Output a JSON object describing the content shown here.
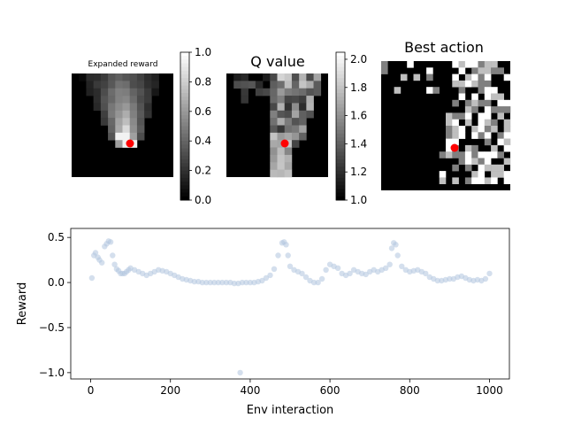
{
  "chart_data": [
    {
      "type": "heatmap",
      "title": "Expanded reward",
      "colormap": "gray",
      "colorbar": {
        "min": 0.0,
        "max": 1.0,
        "ticks": [
          "0.0",
          "0.2",
          "0.4",
          "0.6",
          "0.8",
          "1.0"
        ]
      },
      "marker": {
        "color": "#ff0000"
      }
    },
    {
      "type": "heatmap",
      "title": "Q value",
      "colormap": "gray",
      "colorbar": {
        "min": 1.0,
        "max": 2.05,
        "ticks": [
          "1.0",
          "1.2",
          "1.4",
          "1.6",
          "1.8",
          "2.0"
        ]
      },
      "marker": {
        "color": "#ff0000"
      }
    },
    {
      "type": "heatmap",
      "title": "Best action",
      "colormap": "gray",
      "marker": {
        "color": "#ff0000"
      }
    },
    {
      "type": "scatter",
      "xlabel": "Env interaction",
      "ylabel": "Reward",
      "xlim": [
        -50,
        1050
      ],
      "ylim": [
        -1.07,
        0.6
      ],
      "xticks": [
        "0",
        "200",
        "400",
        "600",
        "800",
        "1000"
      ],
      "yticks": [
        "−1.0",
        "−0.5",
        "0.0",
        "0.5"
      ],
      "point_color": "#b0c4de",
      "series": [
        {
          "x": [
            3,
            8,
            12,
            18,
            22,
            28,
            35,
            40,
            45,
            50,
            55,
            60,
            65,
            70,
            75,
            80,
            85,
            90,
            95,
            100,
            110,
            120,
            130,
            140,
            150,
            160,
            170,
            180,
            190,
            200,
            210,
            220,
            230,
            240,
            250,
            260,
            270,
            280,
            290,
            300,
            310,
            320,
            330,
            340,
            350,
            360,
            370,
            380,
            390,
            400,
            410,
            420,
            430,
            440,
            450,
            460,
            470,
            480,
            485,
            490,
            495,
            500,
            510,
            520,
            530,
            540,
            550,
            560,
            570,
            580,
            590,
            600,
            610,
            620,
            630,
            640,
            650,
            660,
            670,
            680,
            690,
            700,
            710,
            720,
            730,
            740,
            750,
            755,
            760,
            765,
            770,
            780,
            790,
            800,
            810,
            820,
            830,
            840,
            850,
            860,
            870,
            880,
            890,
            900,
            910,
            920,
            930,
            940,
            950,
            960,
            970,
            980,
            990,
            1000,
            375
          ],
          "y": [
            0.05,
            0.3,
            0.33,
            0.28,
            0.25,
            0.22,
            0.4,
            0.43,
            0.46,
            0.45,
            0.3,
            0.2,
            0.15,
            0.13,
            0.1,
            0.1,
            0.1,
            0.12,
            0.14,
            0.16,
            0.14,
            0.12,
            0.1,
            0.08,
            0.1,
            0.12,
            0.14,
            0.13,
            0.12,
            0.1,
            0.08,
            0.06,
            0.04,
            0.03,
            0.02,
            0.01,
            0.01,
            0.0,
            0.0,
            0.0,
            0.0,
            0.0,
            0.0,
            0.0,
            0.0,
            -0.01,
            -0.01,
            0.0,
            0.0,
            0.0,
            0.0,
            0.01,
            0.02,
            0.05,
            0.08,
            0.15,
            0.3,
            0.44,
            0.45,
            0.42,
            0.3,
            0.18,
            0.14,
            0.12,
            0.1,
            0.06,
            0.02,
            0.0,
            0.0,
            0.04,
            0.14,
            0.2,
            0.18,
            0.16,
            0.1,
            0.08,
            0.1,
            0.14,
            0.12,
            0.1,
            0.09,
            0.12,
            0.14,
            0.12,
            0.14,
            0.16,
            0.2,
            0.38,
            0.44,
            0.42,
            0.3,
            0.18,
            0.14,
            0.12,
            0.13,
            0.14,
            0.12,
            0.1,
            0.06,
            0.04,
            0.02,
            0.02,
            0.03,
            0.04,
            0.04,
            0.06,
            0.07,
            0.05,
            0.03,
            0.02,
            0.03,
            0.02,
            0.04,
            0.1,
            -1.0
          ]
        }
      ]
    }
  ]
}
